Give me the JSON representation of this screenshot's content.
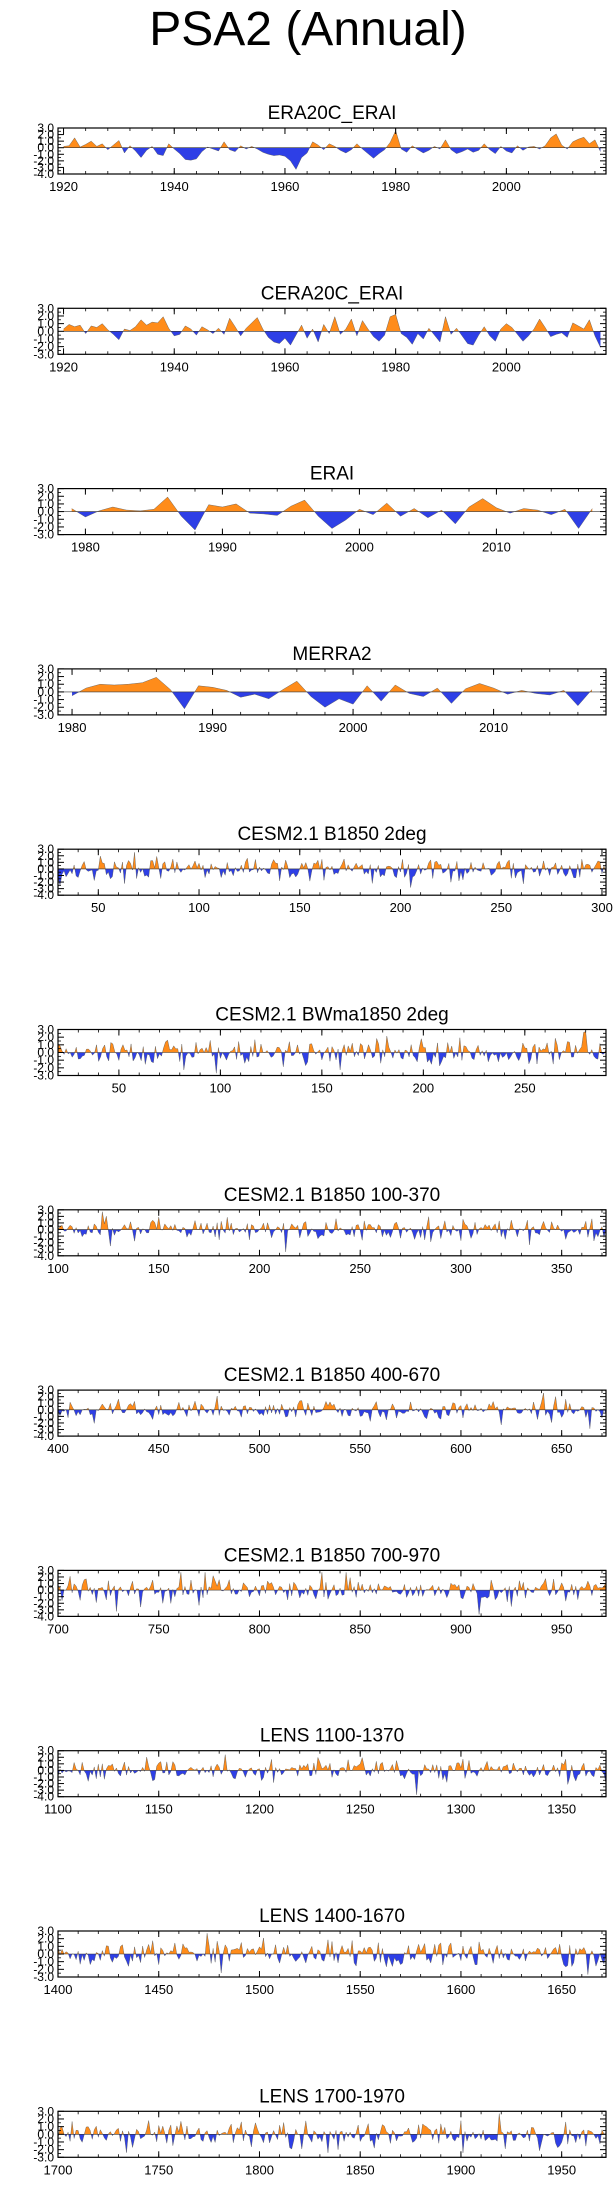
{
  "page_title": "PSA2 (Annual)",
  "colors": {
    "positive": "#ff8c1a",
    "negative": "#2e3fe6",
    "axis": "#000000"
  },
  "chart_data": [
    {
      "type": "area",
      "title": "ERA20C_ERAI",
      "series_kind": "annual",
      "ylabel": "",
      "yticks": [
        "3.0",
        "2.0",
        "1.0",
        "0.0",
        "-1.0",
        "-2.0",
        "-3.0",
        "-4.0"
      ],
      "ylim": [
        -4,
        3
      ],
      "xlim": [
        1919,
        2018
      ],
      "xticks": [
        1920,
        1940,
        1960,
        1980,
        2000
      ],
      "x": [
        1920,
        1921,
        1922,
        1923,
        1924,
        1925,
        1926,
        1927,
        1928,
        1929,
        1930,
        1931,
        1932,
        1933,
        1934,
        1935,
        1936,
        1937,
        1938,
        1939,
        1940,
        1941,
        1942,
        1943,
        1944,
        1945,
        1946,
        1947,
        1948,
        1949,
        1950,
        1951,
        1952,
        1953,
        1954,
        1955,
        1956,
        1957,
        1958,
        1959,
        1960,
        1961,
        1962,
        1963,
        1964,
        1965,
        1966,
        1967,
        1968,
        1969,
        1970,
        1971,
        1972,
        1973,
        1974,
        1975,
        1976,
        1977,
        1978,
        1979,
        1980,
        1981,
        1982,
        1983,
        1984,
        1985,
        1986,
        1987,
        1988,
        1989,
        1990,
        1991,
        1992,
        1993,
        1994,
        1995,
        1996,
        1997,
        1998,
        1999,
        2000,
        2001,
        2002,
        2003,
        2004,
        2005,
        2006,
        2007,
        2008,
        2009,
        2010,
        2011,
        2012,
        2013,
        2014,
        2015,
        2016,
        2017
      ],
      "values": [
        0.2,
        0.3,
        1.5,
        0.1,
        0.5,
        1.0,
        0.2,
        0.6,
        -0.3,
        0.4,
        1.1,
        -0.8,
        0.3,
        -0.5,
        -1.5,
        -0.4,
        0.2,
        -1.0,
        -1.2,
        0.6,
        -0.2,
        -0.9,
        -1.8,
        -1.9,
        -1.7,
        -0.6,
        0.1,
        -0.2,
        -0.5,
        0.9,
        -0.3,
        -0.6,
        0.3,
        -0.2,
        0.2,
        -0.2,
        -0.7,
        -1.0,
        -1.2,
        -1.1,
        -1.3,
        -2.0,
        -3.3,
        -1.5,
        -0.8,
        0.9,
        0.4,
        -0.3,
        0.6,
        0.2,
        -0.4,
        -0.8,
        -0.3,
        0.6,
        -0.2,
        -0.9,
        -1.6,
        -0.9,
        -0.3,
        0.8,
        2.6,
        -0.2,
        -0.7,
        0.3,
        -0.3,
        -0.8,
        -0.4,
        0.2,
        -0.2,
        1.2,
        -0.3,
        -0.9,
        -0.6,
        -0.2,
        -0.7,
        -0.4,
        0.6,
        -0.3,
        -0.9,
        0.2,
        -0.5,
        -0.8,
        0.3,
        -0.4,
        0.1,
        0.2,
        -0.2,
        0.3,
        1.5,
        2.1,
        0.4,
        -0.2,
        0.9,
        1.3,
        1.6,
        0.6,
        1.2,
        -0.6
      ]
    },
    {
      "type": "area",
      "title": "CERA20C_ERAI",
      "series_kind": "annual",
      "yticks": [
        "3.0",
        "2.0",
        "1.0",
        "0.0",
        "-1.0",
        "-2.0",
        "-3.0"
      ],
      "ylim": [
        -3,
        3
      ],
      "xlim": [
        1919,
        2018
      ],
      "xticks": [
        1920,
        1940,
        1960,
        1980,
        2000
      ],
      "x": [
        1920,
        1921,
        1922,
        1923,
        1924,
        1925,
        1926,
        1927,
        1928,
        1929,
        1930,
        1931,
        1932,
        1933,
        1934,
        1935,
        1936,
        1937,
        1938,
        1939,
        1940,
        1941,
        1942,
        1943,
        1944,
        1945,
        1946,
        1947,
        1948,
        1949,
        1950,
        1951,
        1952,
        1953,
        1954,
        1955,
        1956,
        1957,
        1958,
        1959,
        1960,
        1961,
        1962,
        1963,
        1964,
        1965,
        1966,
        1967,
        1968,
        1969,
        1970,
        1971,
        1972,
        1973,
        1974,
        1975,
        1976,
        1977,
        1978,
        1979,
        1980,
        1981,
        1982,
        1983,
        1984,
        1985,
        1986,
        1987,
        1988,
        1989,
        1990,
        1991,
        1992,
        1993,
        1994,
        1995,
        1996,
        1997,
        1998,
        1999,
        2000,
        2001,
        2002,
        2003,
        2004,
        2005,
        2006,
        2007,
        2008,
        2009,
        2010,
        2011,
        2012,
        2013,
        2014,
        2015,
        2016,
        2017
      ],
      "values": [
        0.3,
        0.9,
        0.6,
        0.8,
        -0.3,
        0.7,
        0.5,
        1.0,
        0.2,
        -0.4,
        -1.1,
        0.3,
        0.1,
        0.6,
        1.5,
        0.8,
        1.2,
        1.1,
        1.9,
        0.4,
        -0.6,
        -0.4,
        0.7,
        0.3,
        -0.5,
        0.6,
        0.2,
        -0.3,
        0.4,
        -0.4,
        1.7,
        0.6,
        -0.6,
        0.4,
        1.1,
        1.8,
        0.3,
        -0.8,
        -1.4,
        -1.6,
        -0.9,
        -1.8,
        -0.5,
        0.8,
        -0.9,
        0.3,
        -1.4,
        0.9,
        -0.3,
        1.9,
        -0.4,
        0.3,
        1.6,
        -0.6,
        1.4,
        0.3,
        -0.7,
        -1.3,
        -0.5,
        1.9,
        2.2,
        -0.3,
        -0.8,
        -1.7,
        -0.3,
        -1.0,
        0.4,
        -0.5,
        -1.4,
        1.9,
        -0.4,
        0.4,
        -0.6,
        -1.6,
        -1.8,
        -0.5,
        0.6,
        -0.6,
        -1.3,
        0.3,
        1.0,
        0.5,
        -0.4,
        -1.3,
        -0.6,
        0.3,
        1.6,
        0.5,
        -0.7,
        -0.4,
        -0.2,
        -0.8,
        1.1,
        0.7,
        0.3,
        1.5,
        -0.6,
        -2.1
      ]
    },
    {
      "type": "area",
      "title": "ERAI",
      "series_kind": "annual",
      "yticks": [
        "3.0",
        "2.0",
        "1.0",
        "0.0",
        "-1.0",
        "-2.0",
        "-3.0"
      ],
      "ylim": [
        -3,
        3
      ],
      "xlim": [
        1978,
        2018
      ],
      "xticks": [
        1980,
        1990,
        2000,
        2010
      ],
      "x": [
        1979,
        1980,
        1981,
        1982,
        1983,
        1984,
        1985,
        1986,
        1987,
        1988,
        1989,
        1990,
        1991,
        1992,
        1993,
        1994,
        1995,
        1996,
        1997,
        1998,
        1999,
        2000,
        2001,
        2002,
        2003,
        2004,
        2005,
        2006,
        2007,
        2008,
        2009,
        2010,
        2011,
        2012,
        2013,
        2014,
        2015,
        2016,
        2017
      ],
      "values": [
        0.4,
        -0.7,
        0.1,
        0.6,
        0.2,
        0.1,
        0.3,
        1.9,
        -0.6,
        -2.4,
        0.9,
        0.6,
        1.0,
        -0.2,
        -0.3,
        -0.5,
        0.7,
        1.5,
        -0.6,
        -2.2,
        -1.1,
        0.3,
        -0.4,
        1.1,
        -0.6,
        0.4,
        -0.8,
        0.2,
        -1.6,
        0.6,
        1.7,
        0.5,
        -0.2,
        0.4,
        0.2,
        -0.4,
        0.3,
        -2.2,
        0.4
      ]
    },
    {
      "type": "area",
      "title": "MERRA2",
      "series_kind": "annual",
      "yticks": [
        "3.0",
        "2.0",
        "1.0",
        "0.0",
        "-1.0",
        "-2.0",
        "-3.0"
      ],
      "ylim": [
        -3,
        3
      ],
      "xlim": [
        1979,
        2018
      ],
      "xticks": [
        1980,
        1990,
        2000,
        2010
      ],
      "x": [
        1980,
        1981,
        1982,
        1983,
        1984,
        1985,
        1986,
        1987,
        1988,
        1989,
        1990,
        1991,
        1992,
        1993,
        1994,
        1995,
        1996,
        1997,
        1998,
        1999,
        2000,
        2001,
        2002,
        2003,
        2004,
        2005,
        2006,
        2007,
        2008,
        2009,
        2010,
        2011,
        2012,
        2013,
        2014,
        2015,
        2016,
        2017
      ],
      "values": [
        -0.5,
        0.5,
        1.0,
        0.9,
        1.0,
        1.2,
        1.9,
        0.3,
        -2.2,
        0.8,
        0.6,
        0.2,
        -0.7,
        -0.3,
        -0.9,
        0.3,
        1.4,
        -0.6,
        -2.0,
        -0.9,
        -1.6,
        0.8,
        -1.2,
        0.9,
        -0.2,
        -0.6,
        0.5,
        -1.5,
        0.4,
        1.1,
        0.5,
        -0.3,
        0.2,
        -0.2,
        -0.4,
        0.2,
        -1.8,
        0.3
      ]
    },
    {
      "type": "area",
      "title": "CESM2.1 B1850 2deg",
      "series_kind": "model",
      "yticks": [
        "3.0",
        "2.0",
        "1.0",
        "0.0",
        "-1.0",
        "-2.0",
        "-3.0",
        "-4.0"
      ],
      "ylim": [
        -4,
        3
      ],
      "xlim": [
        30,
        302
      ],
      "xticks": [
        50,
        100,
        150,
        200,
        250,
        300
      ]
    },
    {
      "type": "area",
      "title": "CESM2.1 BWma1850 2deg",
      "series_kind": "model",
      "yticks": [
        "3.0",
        "2.0",
        "1.0",
        "0.0",
        "-1.0",
        "-2.0",
        "-3.0"
      ],
      "ylim": [
        -3,
        3
      ],
      "xlim": [
        20,
        290
      ],
      "xticks": [
        50,
        100,
        150,
        200,
        250
      ]
    },
    {
      "type": "area",
      "title": "CESM2.1 B1850 100-370",
      "series_kind": "model",
      "yticks": [
        "3.0",
        "2.0",
        "1.0",
        "0.0",
        "-1.0",
        "-2.0",
        "-3.0",
        "-4.0"
      ],
      "ylim": [
        -4,
        3
      ],
      "xlim": [
        100,
        372
      ],
      "xticks": [
        100,
        150,
        200,
        250,
        300,
        350
      ]
    },
    {
      "type": "area",
      "title": "CESM2.1 B1850 400-670",
      "series_kind": "model",
      "yticks": [
        "3.0",
        "2.0",
        "1.0",
        "0.0",
        "-1.0",
        "-2.0",
        "-3.0",
        "-4.0"
      ],
      "ylim": [
        -4,
        3
      ],
      "xlim": [
        400,
        672
      ],
      "xticks": [
        400,
        450,
        500,
        550,
        600,
        650
      ]
    },
    {
      "type": "area",
      "title": "CESM2.1 B1850 700-970",
      "series_kind": "model",
      "yticks": [
        "3.0",
        "2.0",
        "1.0",
        "0.0",
        "-1.0",
        "-2.0",
        "-3.0",
        "-4.0"
      ],
      "ylim": [
        -4,
        3
      ],
      "xlim": [
        700,
        972
      ],
      "xticks": [
        700,
        750,
        800,
        850,
        900,
        950
      ]
    },
    {
      "type": "area",
      "title": "LENS 1100-1370",
      "series_kind": "model",
      "yticks": [
        "3.0",
        "2.0",
        "1.0",
        "0.0",
        "-1.0",
        "-2.0",
        "-3.0",
        "-4.0"
      ],
      "ylim": [
        -4,
        3
      ],
      "xlim": [
        1100,
        1372
      ],
      "xticks": [
        1100,
        1150,
        1200,
        1250,
        1300,
        1350
      ]
    },
    {
      "type": "area",
      "title": "LENS 1400-1670",
      "series_kind": "model",
      "yticks": [
        "3.0",
        "2.0",
        "1.0",
        "0.0",
        "-1.0",
        "-2.0",
        "-3.0"
      ],
      "ylim": [
        -3,
        3
      ],
      "xlim": [
        1400,
        1672
      ],
      "xticks": [
        1400,
        1450,
        1500,
        1550,
        1600,
        1650
      ]
    },
    {
      "type": "area",
      "title": "LENS 1700-1970",
      "series_kind": "model",
      "yticks": [
        "3.0",
        "2.0",
        "1.0",
        "0.0",
        "-1.0",
        "-2.0",
        "-3.0"
      ],
      "ylim": [
        -3,
        3
      ],
      "xlim": [
        1700,
        1972
      ],
      "xticks": [
        1700,
        1750,
        1800,
        1850,
        1900,
        1950
      ]
    }
  ]
}
